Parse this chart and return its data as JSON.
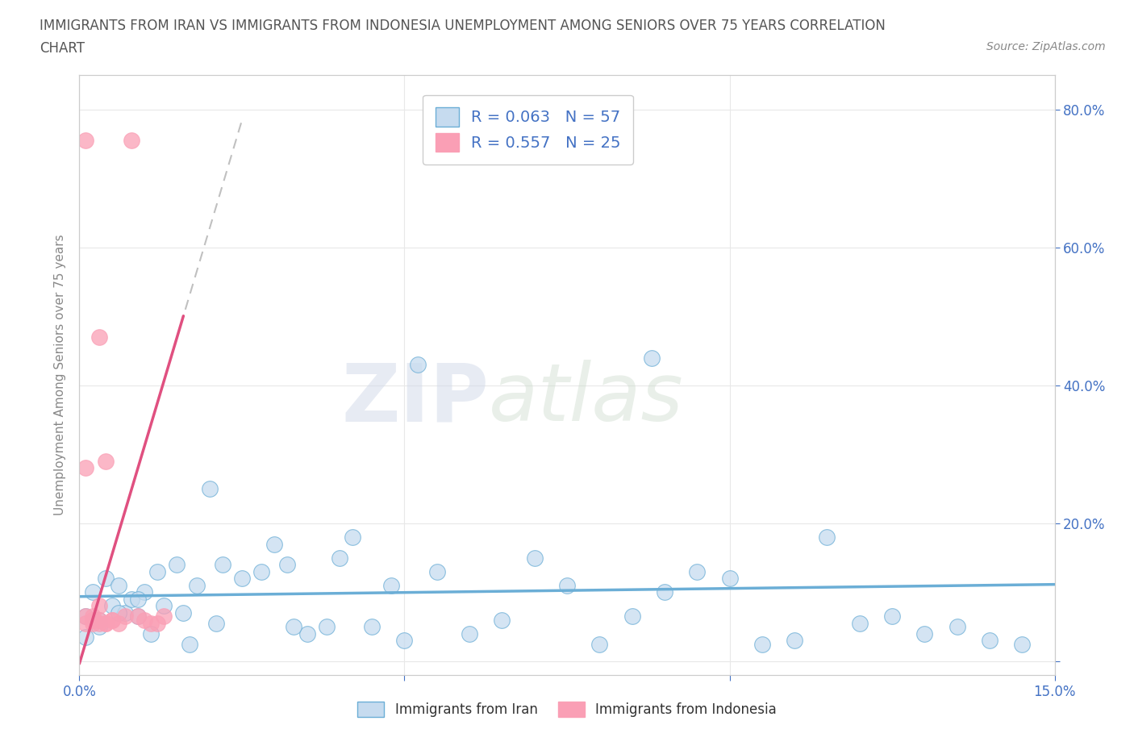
{
  "title_line1": "IMMIGRANTS FROM IRAN VS IMMIGRANTS FROM INDONESIA UNEMPLOYMENT AMONG SENIORS OVER 75 YEARS CORRELATION",
  "title_line2": "CHART",
  "source_text": "Source: ZipAtlas.com",
  "ylabel": "Unemployment Among Seniors over 75 years",
  "legend_label1": "Immigrants from Iran",
  "legend_label2": "Immigrants from Indonesia",
  "R1": 0.063,
  "N1": 57,
  "R2": 0.557,
  "N2": 25,
  "color_iran": "#6baed6",
  "color_iran_light": "#c6dbef",
  "color_indonesia": "#fa9fb5",
  "color_indonesia_line": "#e05080",
  "xlim": [
    0,
    0.15
  ],
  "ylim": [
    -0.02,
    0.85
  ],
  "x_ticks": [
    0.0,
    0.05,
    0.1,
    0.15
  ],
  "y_ticks": [
    0.0,
    0.2,
    0.4,
    0.6,
    0.8
  ],
  "watermark_zip": "ZIP",
  "watermark_atlas": "atlas",
  "background_color": "#ffffff",
  "grid_color": "#e8e8e8",
  "title_color": "#555555",
  "axis_color": "#4472c4",
  "tick_color": "#4472c4",
  "iran_x": [
    0.001,
    0.002,
    0.003,
    0.004,
    0.005,
    0.006,
    0.007,
    0.008,
    0.009,
    0.01,
    0.012,
    0.013,
    0.015,
    0.016,
    0.018,
    0.02,
    0.022,
    0.025,
    0.028,
    0.03,
    0.032,
    0.035,
    0.038,
    0.04,
    0.042,
    0.045,
    0.048,
    0.05,
    0.055,
    0.06,
    0.065,
    0.07,
    0.075,
    0.08,
    0.085,
    0.09,
    0.095,
    0.1,
    0.105,
    0.11,
    0.115,
    0.12,
    0.125,
    0.13,
    0.135,
    0.14,
    0.145,
    0.001,
    0.003,
    0.006,
    0.009,
    0.011,
    0.017,
    0.021,
    0.033,
    0.052,
    0.088
  ],
  "iran_y": [
    0.065,
    0.1,
    0.06,
    0.12,
    0.08,
    0.11,
    0.07,
    0.09,
    0.065,
    0.1,
    0.13,
    0.08,
    0.14,
    0.07,
    0.11,
    0.25,
    0.14,
    0.12,
    0.13,
    0.17,
    0.14,
    0.04,
    0.05,
    0.15,
    0.18,
    0.05,
    0.11,
    0.03,
    0.13,
    0.04,
    0.06,
    0.15,
    0.11,
    0.025,
    0.065,
    0.1,
    0.13,
    0.12,
    0.025,
    0.03,
    0.18,
    0.055,
    0.065,
    0.04,
    0.05,
    0.03,
    0.025,
    0.035,
    0.05,
    0.07,
    0.09,
    0.04,
    0.025,
    0.055,
    0.05,
    0.43,
    0.44
  ],
  "indonesia_x": [
    0.001,
    0.002,
    0.003,
    0.004,
    0.005,
    0.006,
    0.007,
    0.008,
    0.009,
    0.01,
    0.011,
    0.012,
    0.013,
    0.001,
    0.002,
    0.003,
    0.004,
    0.005,
    0.001,
    0.002,
    0.003,
    0.001,
    0.002,
    0.003,
    0.004
  ],
  "indonesia_y": [
    0.065,
    0.065,
    0.08,
    0.055,
    0.06,
    0.055,
    0.065,
    0.755,
    0.065,
    0.06,
    0.055,
    0.055,
    0.065,
    0.755,
    0.06,
    0.47,
    0.29,
    0.06,
    0.28,
    0.055,
    0.06,
    0.055,
    0.06,
    0.055,
    0.055
  ]
}
